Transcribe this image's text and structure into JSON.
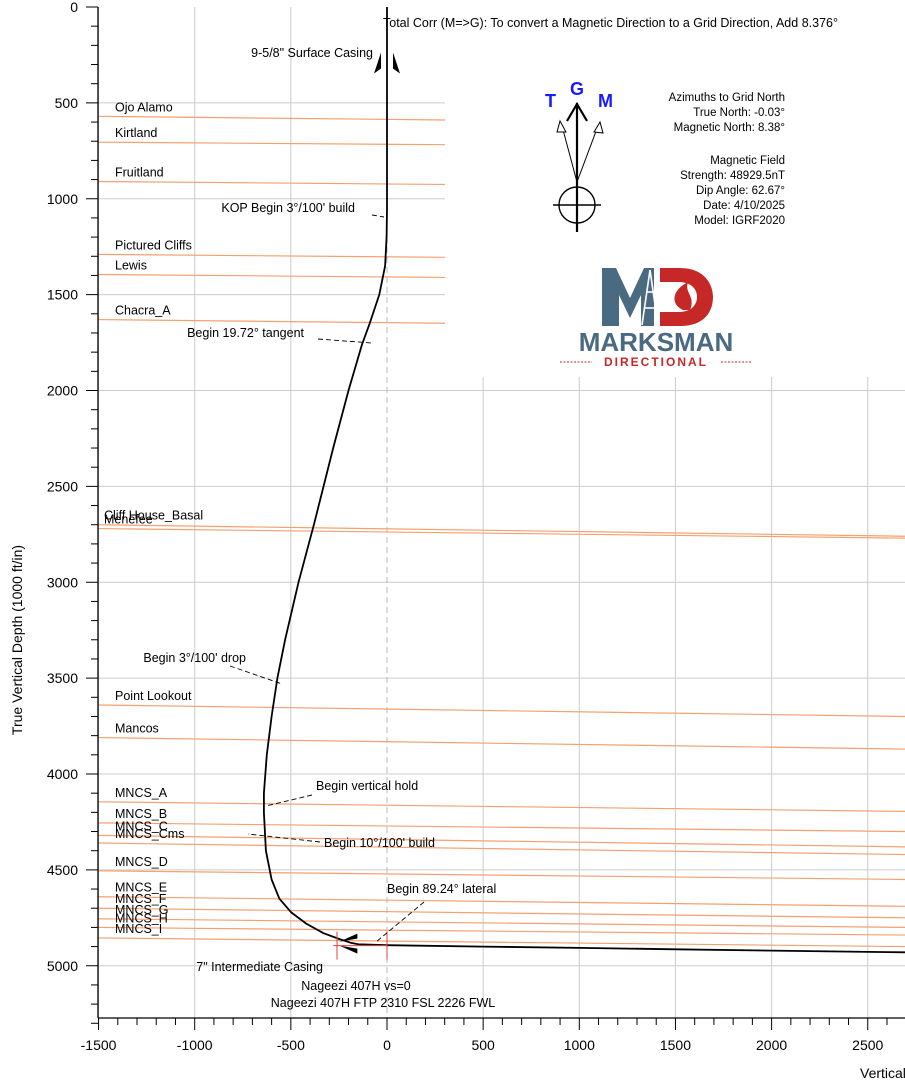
{
  "chart_data": {
    "type": "line",
    "title": "",
    "ylabel": "True Vertical Depth (1000 ft/in)",
    "xlabel": "Vertical",
    "xlim": [
      -1500,
      2700
    ],
    "ylim": [
      0,
      5350
    ],
    "x_ticks": [
      -1500,
      -1000,
      -500,
      0,
      500,
      1000,
      1500,
      2000,
      2500
    ],
    "y_ticks": [
      0,
      500,
      1000,
      1500,
      2000,
      2500,
      3000,
      3500,
      4000,
      4500,
      5000
    ],
    "tick_labels_x": [
      "-1500",
      "-1000",
      "-500",
      "0",
      "500",
      "1000",
      "1500",
      "2000",
      "2500"
    ],
    "tick_labels_y": [
      "0",
      "500",
      "1000",
      "1500",
      "2000",
      "2500",
      "3000",
      "3500",
      "4000",
      "4500",
      "5000"
    ],
    "grid": true,
    "series": [
      {
        "name": "",
        "x": [
          0,
          0,
          0,
          -2,
          -10,
          -40,
          -90,
          -130,
          -200,
          -280,
          -380,
          -460,
          -530,
          -570,
          -600,
          -625,
          -640,
          -640,
          -630,
          -600,
          -560,
          -500,
          -420,
          -330,
          -250,
          -190,
          -150,
          0,
          500,
          1000,
          1500,
          2000,
          2500,
          2700
        ],
        "y": [
          0,
          200,
          1050,
          1200,
          1350,
          1500,
          1650,
          1760,
          2000,
          2300,
          2700,
          3000,
          3300,
          3500,
          3700,
          3900,
          4100,
          4200,
          4400,
          4550,
          4650,
          4720,
          4780,
          4830,
          4860,
          4880,
          4888,
          4893,
          4900,
          4907,
          4914,
          4921,
          4928,
          4930
        ]
      }
    ],
    "formations": [
      {
        "name": "Ojo Alamo",
        "left_tvd": 570,
        "right_tvd": 595
      },
      {
        "name": "Kirtland",
        "left_tvd": 705,
        "right_tvd": 722
      },
      {
        "name": "Fruitland",
        "left_tvd": 910,
        "right_tvd": 930
      },
      {
        "name": "Pictured Cliffs",
        "left_tvd": 1290,
        "right_tvd": 1310
      },
      {
        "name": "Lewis",
        "left_tvd": 1395,
        "right_tvd": 1415
      },
      {
        "name": "Chacra_A",
        "left_tvd": 1630,
        "right_tvd": 1655
      },
      {
        "name": "Cliff House_Basal",
        "left_tvd": 2700,
        "right_tvd": 2760
      },
      {
        "name": "Menefee",
        "left_tvd": 2720,
        "right_tvd": 2770
      },
      {
        "name": "Point Lookout",
        "left_tvd": 3640,
        "right_tvd": 3700
      },
      {
        "name": "Mancos",
        "left_tvd": 3810,
        "right_tvd": 3870
      },
      {
        "name": "MNCS_A",
        "left_tvd": 4145,
        "right_tvd": 4195
      },
      {
        "name": "MNCS_B",
        "left_tvd": 4255,
        "right_tvd": 4300
      },
      {
        "name": "MNCS_C",
        "left_tvd": 4320,
        "right_tvd": 4380
      },
      {
        "name": "MNCS_Cms",
        "left_tvd": 4360,
        "right_tvd": 4420
      },
      {
        "name": "MNCS_D",
        "left_tvd": 4505,
        "right_tvd": 4550
      },
      {
        "name": "MNCS_E",
        "left_tvd": 4640,
        "right_tvd": 4690
      },
      {
        "name": "MNCS_F",
        "left_tvd": 4700,
        "right_tvd": 4750
      },
      {
        "name": "MNCS_G",
        "left_tvd": 4755,
        "right_tvd": 4800
      },
      {
        "name": "MNCS_H",
        "left_tvd": 4800,
        "right_tvd": 4840
      },
      {
        "name": "MNCS_I",
        "left_tvd": 4855,
        "right_tvd": 4900
      }
    ],
    "annotations": [
      {
        "text": "9-5/8\" Surface Casing",
        "x": 0,
        "y": 300
      },
      {
        "text": "KOP Begin 3°/100' build",
        "x": 0,
        "y": 1090
      },
      {
        "text": "Begin 19.72° tangent",
        "x": -60,
        "y": 1760
      },
      {
        "text": "Begin 3°/100' drop",
        "x": -560,
        "y": 3550
      },
      {
        "text": "Begin vertical hold",
        "x": -640,
        "y": 4180
      },
      {
        "text": "Begin 10°/100' build",
        "x": -640,
        "y": 4330
      },
      {
        "text": "Begin 89.24° lateral",
        "x": -250,
        "y": 4880
      },
      {
        "text": "7\" Intermediate Casing",
        "x": -240,
        "y": 4920
      }
    ],
    "target_labels": [
      "Nageezi 407H vs=0",
      "Nageezi 407H FTP 2310 FSL 2226 FWL"
    ],
    "header_note": "Total Corr (M=>G):   To convert a Magnetic Direction to a Grid Direction, Add 8.376°"
  },
  "north_arrows": {
    "t": "T",
    "g": "G",
    "m": "M"
  },
  "azimuths": {
    "title": "Azimuths to Grid North",
    "true_north": "True North: -0.03°",
    "magnetic_north": "Magnetic North: 8.38°"
  },
  "magnetic_field": {
    "title": "Magnetic Field",
    "strength": "Strength: 48929.5nT",
    "dip": "Dip Angle: 62.67°",
    "date": "Date: 4/10/2025",
    "model": "Model: IGRF2020"
  },
  "logo": {
    "name": "MARKSMAN",
    "tagline": "DIRECTIONAL",
    "colors": {
      "steel": "#4a6a82",
      "red": "#c62828"
    }
  },
  "colors": {
    "formation": "#f4a070",
    "grid": "#cccccc",
    "well": "#000000",
    "casing": "#000000",
    "target": "#e04040",
    "arrows": "#1a1aff"
  }
}
